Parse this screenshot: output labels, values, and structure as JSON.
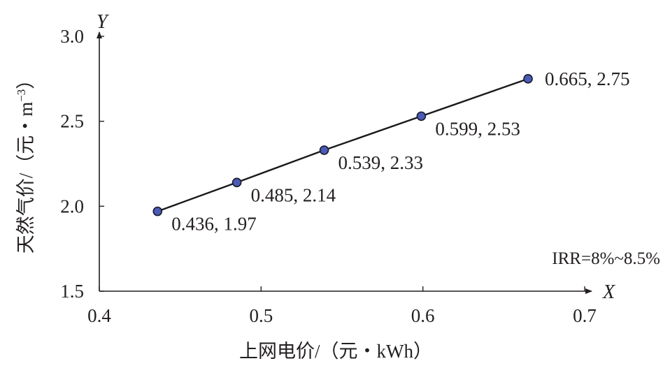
{
  "chart_data": {
    "type": "scatter",
    "x": [
      0.436,
      0.485,
      0.539,
      0.599,
      0.665
    ],
    "y": [
      1.97,
      2.14,
      2.33,
      2.53,
      2.75
    ],
    "point_labels": [
      "0.436, 1.97",
      "0.485, 2.14",
      "0.539, 2.33",
      "0.599, 2.53",
      "0.665, 2.75"
    ],
    "fit_line": true,
    "xlim": [
      0.4,
      0.7
    ],
    "ylim": [
      1.5,
      3.0
    ],
    "x_ticks": [
      "0.4",
      "0.5",
      "0.6",
      "0.7"
    ],
    "y_ticks": [
      "1.5",
      "2.0",
      "2.5",
      "3.0"
    ],
    "x_axis_letter": "X",
    "y_axis_letter": "Y",
    "xlabel": "上网电价/（元・kWh）",
    "ylabel_main": "天然气价/（元・m",
    "ylabel_sup": "−3",
    "ylabel_end": "）",
    "annotation": "IRR=8%~8.5%",
    "grid": false,
    "legend": "none",
    "marker_color": "#4a5bb5",
    "line_color": "#1a1a1a"
  }
}
